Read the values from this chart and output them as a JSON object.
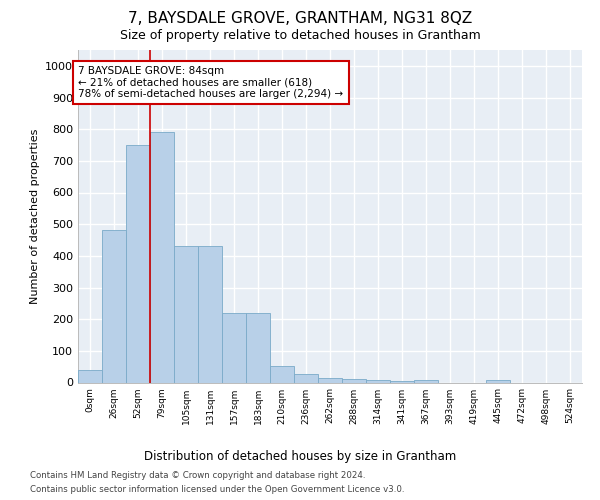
{
  "title": "7, BAYSDALE GROVE, GRANTHAM, NG31 8QZ",
  "subtitle": "Size of property relative to detached houses in Grantham",
  "xlabel": "Distribution of detached houses by size in Grantham",
  "ylabel": "Number of detached properties",
  "footer_line1": "Contains HM Land Registry data © Crown copyright and database right 2024.",
  "footer_line2": "Contains public sector information licensed under the Open Government Licence v3.0.",
  "categories": [
    "0sqm",
    "26sqm",
    "52sqm",
    "79sqm",
    "105sqm",
    "131sqm",
    "157sqm",
    "183sqm",
    "210sqm",
    "236sqm",
    "262sqm",
    "288sqm",
    "314sqm",
    "341sqm",
    "367sqm",
    "393sqm",
    "419sqm",
    "445sqm",
    "472sqm",
    "498sqm",
    "524sqm"
  ],
  "bar_values": [
    40,
    483,
    750,
    790,
    432,
    432,
    218,
    218,
    52,
    28,
    15,
    10,
    8,
    5,
    8,
    0,
    0,
    8,
    0,
    0,
    0
  ],
  "bar_color": "#b8d0e8",
  "bar_edge_color": "#7aaac8",
  "ylim": [
    0,
    1050
  ],
  "yticks": [
    0,
    100,
    200,
    300,
    400,
    500,
    600,
    700,
    800,
    900,
    1000
  ],
  "property_label": "7 BAYSDALE GROVE: 84sqm",
  "annotation_line1": "← 21% of detached houses are smaller (618)",
  "annotation_line2": "78% of semi-detached houses are larger (2,294) →",
  "vline_index": 2.5,
  "vline_color": "#cc0000",
  "bg_color": "#e8eef5",
  "grid_color": "#ffffff",
  "fig_bg_color": "#ffffff"
}
